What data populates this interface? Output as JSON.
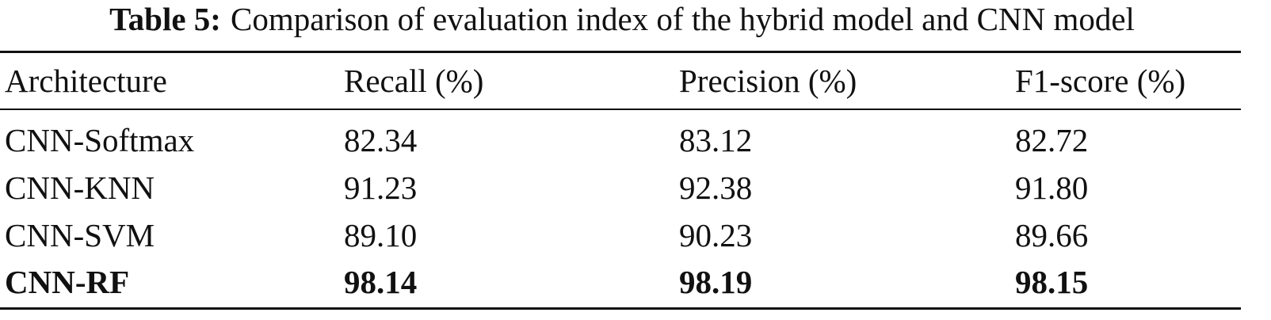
{
  "caption": {
    "label": "Table 5:",
    "text": "Comparison of evaluation index of the hybrid model and CNN model"
  },
  "table": {
    "header": [
      "Architecture",
      "Recall (%)",
      "Precision (%)",
      "F1-score (%)"
    ],
    "rows": [
      [
        "CNN-Softmax",
        "82.34",
        "83.12",
        "82.72"
      ],
      [
        "CNN-KNN",
        "91.23",
        "92.38",
        "91.80"
      ],
      [
        "CNN-SVM",
        "89.10",
        "90.23",
        "89.66"
      ],
      [
        "CNN-RF",
        "98.14",
        "98.19",
        "98.15"
      ]
    ]
  }
}
